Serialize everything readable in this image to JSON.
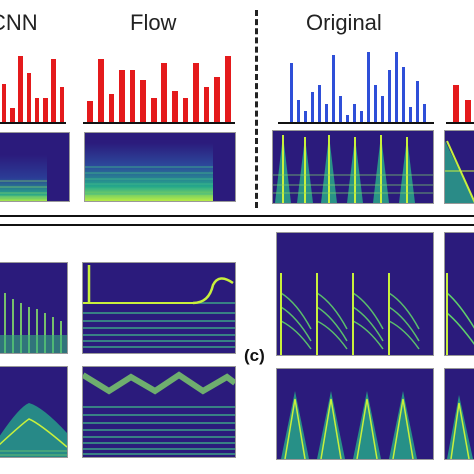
{
  "headers": {
    "left": "CNN",
    "flow": "Flow",
    "original": "Original"
  },
  "panel_label": "(c)",
  "colors": {
    "red_bars": "#e41a1c",
    "blue_bars": "#2f4fd8",
    "spec_bg": "#2b1b7c",
    "spec_mid": "#1f9c8a",
    "spec_hi": "#c8f03c"
  },
  "bar_groups": [
    {
      "id": "cnn",
      "color": "red",
      "values": [
        0.55,
        0.2,
        0.95,
        0.7,
        0.35,
        0.35,
        0.9,
        0.5
      ]
    },
    {
      "id": "flow",
      "color": "red",
      "values": [
        0.3,
        0.9,
        0.4,
        0.75,
        0.75,
        0.6,
        0.35,
        0.85,
        0.45,
        0.35,
        0.85,
        0.5,
        0.65,
        0.95
      ]
    },
    {
      "id": "original",
      "color": "blue",
      "values": [
        0.8,
        0.3,
        0.15,
        0.4,
        0.5,
        0.25,
        0.9,
        0.35,
        0.1,
        0.25,
        0.15,
        0.95,
        0.5,
        0.35,
        0.7,
        0.95,
        0.75,
        0.2,
        0.55,
        0.25
      ]
    },
    {
      "id": "edge",
      "color": "red",
      "values": [
        0.75,
        0.45
      ]
    }
  ]
}
